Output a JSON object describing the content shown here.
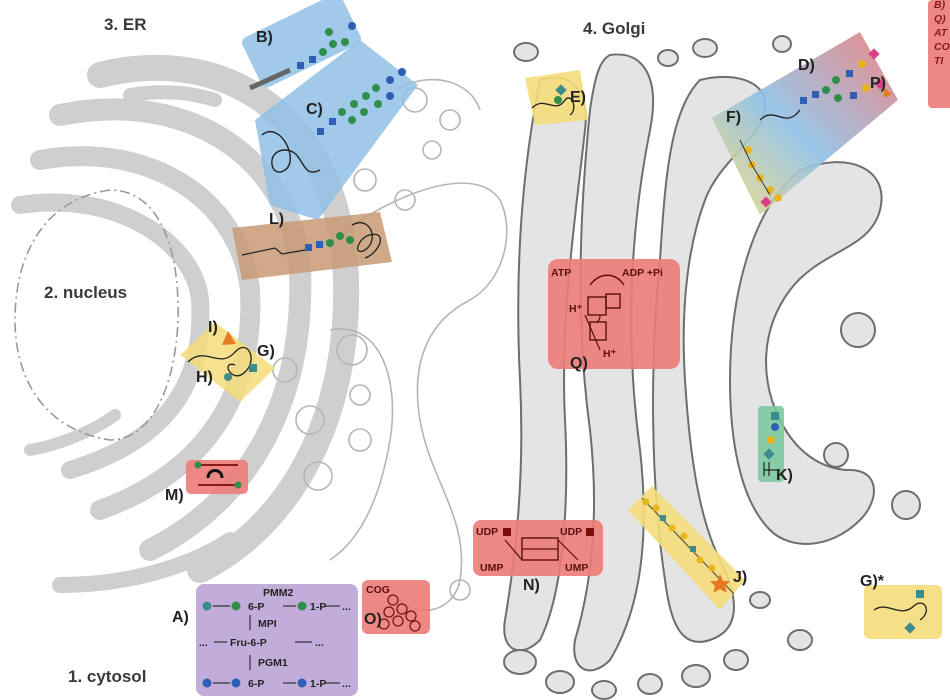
{
  "regions": {
    "cytosol": "1. cytosol",
    "nucleus": "2. nucleus",
    "er": "3. ER",
    "golgi": "4. Golgi"
  },
  "labels": {
    "A": "A)",
    "B": "B)",
    "C": "C)",
    "D": "D)",
    "E": "E)",
    "F": "F)",
    "G": "G)",
    "G_star": "G)*",
    "H": "H)",
    "I": "I)",
    "J": "J)",
    "K": "K)",
    "L": "L)",
    "M": "M)",
    "N": "N)",
    "O": "O)",
    "P": "P)",
    "Q": "Q)"
  },
  "box_text": {
    "cog": "COG",
    "udp_left": "UDP",
    "udp_right": "UDP",
    "ump_left": "UMP",
    "ump_right": "UMP",
    "atp": "ATP",
    "adp_pi": "ADP +Pi",
    "h_plus_top": "H⁺",
    "h_plus_bottom": "H⁺"
  },
  "pathway": {
    "pmm2": "PMM2",
    "mpi": "MPI",
    "pgm1": "PGM1",
    "row1": [
      "6-P",
      "1-P",
      "..."
    ],
    "row2_prefix": "...",
    "row2": [
      "Fru-6-P",
      "..."
    ],
    "row3": [
      "6-P",
      "1-P",
      "..."
    ]
  },
  "legend_fragment": [
    "B)",
    "Q)",
    "AT",
    "CO",
    "TI"
  ],
  "colors": {
    "membrane": "#cfcfcf",
    "golgi_fill": "#e4e4e4",
    "golgi_stroke": "#6e6e6e",
    "blue_box": "#8fc0e6",
    "yellow_box": "#f4dc7a",
    "brown_box": "#c89a74",
    "red_box": "#ec7b78",
    "purple_box": "#bba4d6",
    "green_box": "#7cc9a0",
    "mannose_green": "#2f8f4a",
    "glcnac_blue": "#2e5fb4",
    "galactose_yellow": "#e8b51a",
    "sialic_pink": "#d8408a",
    "fucose_orange": "#e77a20",
    "teal_square": "#3c8c8c"
  }
}
